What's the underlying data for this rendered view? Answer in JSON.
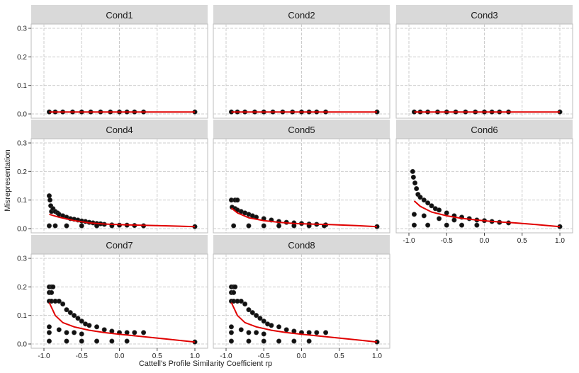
{
  "chart_data": {
    "type": "scatter",
    "xlabel": "Cattell's Profile Similarity Coefficient rp",
    "ylabel": "Misrepresentation",
    "xlim": [
      -1.0,
      1.0
    ],
    "ylim": [
      0.0,
      0.3
    ],
    "x_ticks": [
      -1.0,
      -0.5,
      0.0,
      0.5,
      1.0
    ],
    "x_tick_labels": [
      "-1.0",
      "-0.5",
      "0.0",
      "0.5",
      "1.0"
    ],
    "y_ticks": [
      0.0,
      0.1,
      0.2,
      0.3
    ],
    "y_tick_labels": [
      "0.0",
      "0.1",
      "0.2",
      "0.3"
    ],
    "grid": true,
    "point_color": "#111111",
    "smooth_color": "#e00000",
    "strip_color": "#d9d9d9",
    "panels": [
      {
        "name": "Cond1",
        "points": [
          [
            -0.93,
            0.007
          ],
          [
            -0.85,
            0.007
          ],
          [
            -0.75,
            0.007
          ],
          [
            -0.62,
            0.007
          ],
          [
            -0.5,
            0.007
          ],
          [
            -0.38,
            0.007
          ],
          [
            -0.25,
            0.007
          ],
          [
            -0.12,
            0.007
          ],
          [
            0.0,
            0.007
          ],
          [
            0.1,
            0.007
          ],
          [
            0.2,
            0.007
          ],
          [
            0.32,
            0.007
          ],
          [
            1.0,
            0.007
          ]
        ],
        "smooth": [
          [
            -0.93,
            0.007
          ],
          [
            1.0,
            0.007
          ]
        ]
      },
      {
        "name": "Cond2",
        "points": [
          [
            -0.93,
            0.007
          ],
          [
            -0.85,
            0.007
          ],
          [
            -0.75,
            0.007
          ],
          [
            -0.62,
            0.007
          ],
          [
            -0.5,
            0.007
          ],
          [
            -0.38,
            0.007
          ],
          [
            -0.25,
            0.007
          ],
          [
            -0.12,
            0.007
          ],
          [
            0.0,
            0.007
          ],
          [
            0.1,
            0.007
          ],
          [
            0.2,
            0.007
          ],
          [
            0.32,
            0.007
          ],
          [
            1.0,
            0.007
          ]
        ],
        "smooth": [
          [
            -0.93,
            0.007
          ],
          [
            1.0,
            0.007
          ]
        ]
      },
      {
        "name": "Cond3",
        "points": [
          [
            -0.93,
            0.007
          ],
          [
            -0.85,
            0.007
          ],
          [
            -0.75,
            0.007
          ],
          [
            -0.62,
            0.007
          ],
          [
            -0.5,
            0.007
          ],
          [
            -0.38,
            0.007
          ],
          [
            -0.25,
            0.007
          ],
          [
            -0.12,
            0.007
          ],
          [
            0.0,
            0.007
          ],
          [
            0.1,
            0.007
          ],
          [
            0.2,
            0.007
          ],
          [
            0.32,
            0.007
          ],
          [
            1.0,
            0.007
          ]
        ],
        "smooth": [
          [
            -0.93,
            0.007
          ],
          [
            1.0,
            0.007
          ]
        ]
      },
      {
        "name": "Cond4",
        "points": [
          [
            -0.93,
            0.115
          ],
          [
            -0.92,
            0.1
          ],
          [
            -0.91,
            0.08
          ],
          [
            -0.9,
            0.06
          ],
          [
            -0.88,
            0.07
          ],
          [
            -0.85,
            0.06
          ],
          [
            -0.82,
            0.055
          ],
          [
            -0.8,
            0.05
          ],
          [
            -0.75,
            0.045
          ],
          [
            -0.7,
            0.04
          ],
          [
            -0.65,
            0.035
          ],
          [
            -0.6,
            0.033
          ],
          [
            -0.55,
            0.03
          ],
          [
            -0.5,
            0.027
          ],
          [
            -0.45,
            0.025
          ],
          [
            -0.4,
            0.022
          ],
          [
            -0.35,
            0.02
          ],
          [
            -0.3,
            0.018
          ],
          [
            -0.25,
            0.017
          ],
          [
            -0.2,
            0.015
          ],
          [
            -0.1,
            0.013
          ],
          [
            0.0,
            0.012
          ],
          [
            0.1,
            0.012
          ],
          [
            0.2,
            0.011
          ],
          [
            0.32,
            0.01
          ],
          [
            -0.93,
            0.01
          ],
          [
            -0.85,
            0.01
          ],
          [
            -0.7,
            0.01
          ],
          [
            -0.5,
            0.01
          ],
          [
            -0.3,
            0.01
          ],
          [
            -0.1,
            0.01
          ],
          [
            1.0,
            0.007
          ]
        ],
        "smooth": [
          [
            -0.93,
            0.05
          ],
          [
            -0.8,
            0.04
          ],
          [
            -0.6,
            0.028
          ],
          [
            -0.4,
            0.02
          ],
          [
            -0.2,
            0.016
          ],
          [
            0.0,
            0.014
          ],
          [
            0.3,
            0.012
          ],
          [
            0.6,
            0.01
          ],
          [
            1.0,
            0.007
          ]
        ]
      },
      {
        "name": "Cond5",
        "points": [
          [
            -0.93,
            0.1
          ],
          [
            -0.88,
            0.1
          ],
          [
            -0.85,
            0.1
          ],
          [
            -0.92,
            0.075
          ],
          [
            -0.88,
            0.07
          ],
          [
            -0.85,
            0.065
          ],
          [
            -0.8,
            0.06
          ],
          [
            -0.75,
            0.055
          ],
          [
            -0.7,
            0.05
          ],
          [
            -0.65,
            0.045
          ],
          [
            -0.6,
            0.04
          ],
          [
            -0.5,
            0.035
          ],
          [
            -0.4,
            0.03
          ],
          [
            -0.3,
            0.025
          ],
          [
            -0.2,
            0.022
          ],
          [
            -0.1,
            0.02
          ],
          [
            0.0,
            0.018
          ],
          [
            0.1,
            0.016
          ],
          [
            0.2,
            0.015
          ],
          [
            0.32,
            0.013
          ],
          [
            -0.9,
            0.01
          ],
          [
            -0.7,
            0.01
          ],
          [
            -0.5,
            0.01
          ],
          [
            -0.3,
            0.01
          ],
          [
            -0.1,
            0.01
          ],
          [
            0.1,
            0.01
          ],
          [
            0.3,
            0.01
          ],
          [
            1.0,
            0.007
          ]
        ],
        "smooth": [
          [
            -0.93,
            0.072
          ],
          [
            -0.85,
            0.055
          ],
          [
            -0.7,
            0.038
          ],
          [
            -0.5,
            0.028
          ],
          [
            -0.3,
            0.022
          ],
          [
            -0.1,
            0.018
          ],
          [
            0.1,
            0.016
          ],
          [
            0.4,
            0.014
          ],
          [
            0.7,
            0.011
          ],
          [
            1.0,
            0.007
          ]
        ]
      },
      {
        "name": "Cond6",
        "points": [
          [
            -0.95,
            0.2
          ],
          [
            -0.94,
            0.18
          ],
          [
            -0.92,
            0.16
          ],
          [
            -0.9,
            0.14
          ],
          [
            -0.88,
            0.12
          ],
          [
            -0.85,
            0.11
          ],
          [
            -0.8,
            0.1
          ],
          [
            -0.75,
            0.09
          ],
          [
            -0.7,
            0.08
          ],
          [
            -0.65,
            0.07
          ],
          [
            -0.6,
            0.065
          ],
          [
            -0.5,
            0.055
          ],
          [
            -0.4,
            0.045
          ],
          [
            -0.3,
            0.04
          ],
          [
            -0.2,
            0.035
          ],
          [
            -0.1,
            0.03
          ],
          [
            0.0,
            0.028
          ],
          [
            0.1,
            0.025
          ],
          [
            0.2,
            0.022
          ],
          [
            0.32,
            0.02
          ],
          [
            -0.93,
            0.05
          ],
          [
            -0.8,
            0.045
          ],
          [
            -0.6,
            0.035
          ],
          [
            -0.4,
            0.03
          ],
          [
            -0.93,
            0.012
          ],
          [
            -0.75,
            0.012
          ],
          [
            -0.5,
            0.012
          ],
          [
            -0.3,
            0.012
          ],
          [
            -0.1,
            0.012
          ],
          [
            1.0,
            0.007
          ]
        ],
        "smooth": [
          [
            -0.93,
            0.097
          ],
          [
            -0.85,
            0.078
          ],
          [
            -0.7,
            0.058
          ],
          [
            -0.5,
            0.045
          ],
          [
            -0.3,
            0.036
          ],
          [
            -0.1,
            0.03
          ],
          [
            0.1,
            0.025
          ],
          [
            0.4,
            0.02
          ],
          [
            0.7,
            0.014
          ],
          [
            1.0,
            0.007
          ]
        ]
      },
      {
        "name": "Cond7",
        "points": [
          [
            -0.93,
            0.2
          ],
          [
            -0.9,
            0.2
          ],
          [
            -0.88,
            0.2
          ],
          [
            -0.93,
            0.18
          ],
          [
            -0.9,
            0.18
          ],
          [
            -0.93,
            0.15
          ],
          [
            -0.9,
            0.15
          ],
          [
            -0.85,
            0.15
          ],
          [
            -0.8,
            0.15
          ],
          [
            -0.75,
            0.14
          ],
          [
            -0.7,
            0.12
          ],
          [
            -0.65,
            0.11
          ],
          [
            -0.6,
            0.1
          ],
          [
            -0.55,
            0.09
          ],
          [
            -0.5,
            0.08
          ],
          [
            -0.45,
            0.07
          ],
          [
            -0.4,
            0.065
          ],
          [
            -0.3,
            0.06
          ],
          [
            -0.2,
            0.05
          ],
          [
            -0.1,
            0.045
          ],
          [
            0.0,
            0.04
          ],
          [
            0.1,
            0.04
          ],
          [
            0.2,
            0.04
          ],
          [
            0.32,
            0.04
          ],
          [
            -0.93,
            0.06
          ],
          [
            -0.8,
            0.05
          ],
          [
            -0.6,
            0.04
          ],
          [
            -0.93,
            0.04
          ],
          [
            -0.7,
            0.04
          ],
          [
            -0.5,
            0.035
          ],
          [
            -0.93,
            0.01
          ],
          [
            -0.7,
            0.01
          ],
          [
            -0.5,
            0.01
          ],
          [
            -0.3,
            0.01
          ],
          [
            -0.1,
            0.01
          ],
          [
            0.1,
            0.01
          ],
          [
            1.0,
            0.007
          ]
        ],
        "smooth": [
          [
            -0.93,
            0.145
          ],
          [
            -0.85,
            0.1
          ],
          [
            -0.75,
            0.075
          ],
          [
            -0.6,
            0.06
          ],
          [
            -0.4,
            0.048
          ],
          [
            -0.2,
            0.04
          ],
          [
            0.0,
            0.034
          ],
          [
            0.3,
            0.026
          ],
          [
            0.6,
            0.018
          ],
          [
            1.0,
            0.007
          ]
        ]
      },
      {
        "name": "Cond8",
        "points": [
          [
            -0.93,
            0.2
          ],
          [
            -0.9,
            0.2
          ],
          [
            -0.88,
            0.2
          ],
          [
            -0.93,
            0.18
          ],
          [
            -0.9,
            0.18
          ],
          [
            -0.93,
            0.15
          ],
          [
            -0.9,
            0.15
          ],
          [
            -0.85,
            0.15
          ],
          [
            -0.8,
            0.15
          ],
          [
            -0.75,
            0.14
          ],
          [
            -0.7,
            0.12
          ],
          [
            -0.65,
            0.11
          ],
          [
            -0.6,
            0.1
          ],
          [
            -0.55,
            0.09
          ],
          [
            -0.5,
            0.08
          ],
          [
            -0.45,
            0.07
          ],
          [
            -0.4,
            0.065
          ],
          [
            -0.3,
            0.06
          ],
          [
            -0.2,
            0.05
          ],
          [
            -0.1,
            0.045
          ],
          [
            0.0,
            0.04
          ],
          [
            0.1,
            0.04
          ],
          [
            0.2,
            0.04
          ],
          [
            0.32,
            0.04
          ],
          [
            -0.93,
            0.06
          ],
          [
            -0.8,
            0.05
          ],
          [
            -0.6,
            0.04
          ],
          [
            -0.93,
            0.04
          ],
          [
            -0.7,
            0.04
          ],
          [
            -0.5,
            0.035
          ],
          [
            -0.93,
            0.01
          ],
          [
            -0.7,
            0.01
          ],
          [
            -0.5,
            0.01
          ],
          [
            -0.3,
            0.01
          ],
          [
            -0.1,
            0.01
          ],
          [
            0.1,
            0.01
          ],
          [
            1.0,
            0.007
          ]
        ],
        "smooth": [
          [
            -0.93,
            0.145
          ],
          [
            -0.85,
            0.1
          ],
          [
            -0.75,
            0.075
          ],
          [
            -0.6,
            0.06
          ],
          [
            -0.4,
            0.048
          ],
          [
            -0.2,
            0.04
          ],
          [
            0.0,
            0.034
          ],
          [
            0.3,
            0.026
          ],
          [
            0.6,
            0.018
          ],
          [
            1.0,
            0.007
          ]
        ]
      }
    ]
  }
}
